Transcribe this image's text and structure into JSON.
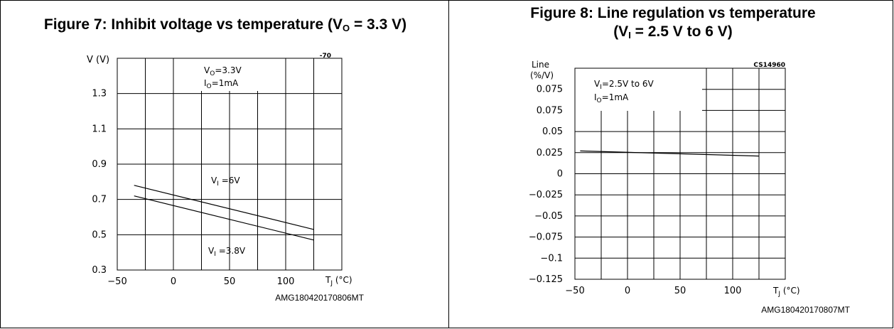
{
  "figures": [
    {
      "title_main": "Figure 7: Inhibit voltage vs temperature (V",
      "title_sub": "O",
      "title_tail": " = 3.3 V)",
      "title_line2_main": "",
      "title_line2_sub": "",
      "title_line2_tail": "",
      "code": "AMG180420170806MT"
    },
    {
      "title_main": "Figure 8: Line regulation vs temperature",
      "title_sub": "",
      "title_tail": "",
      "title_line2_main": "(V",
      "title_line2_sub": "I",
      "title_line2_tail": " = 2.5 V to 6 V)",
      "code": "AMG180420170807MT"
    }
  ],
  "chart_data": [
    {
      "type": "line",
      "title": "Figure 7: Inhibit voltage vs temperature (VO = 3.3 V)",
      "ylabel": "V  (V)",
      "xlabel": "TJ (°C)",
      "corner_tag": "-70",
      "conditions": [
        "VO=3.3V",
        "IO=1mA"
      ],
      "xlim": [
        -50,
        150
      ],
      "ylim": [
        0.3,
        1.5
      ],
      "x_ticks": [
        -50,
        0,
        50,
        100
      ],
      "y_ticks": [
        "0.3",
        "0.5",
        "0.7",
        "0.9",
        "1.1",
        "1.3"
      ],
      "grid": true,
      "series": [
        {
          "name": "VI =6V",
          "x": [
            -35,
            125
          ],
          "y": [
            0.78,
            0.53
          ]
        },
        {
          "name": "VI =3.8V",
          "x": [
            -35,
            125
          ],
          "y": [
            0.72,
            0.47
          ]
        }
      ]
    },
    {
      "type": "line",
      "title": "Figure 8: Line regulation vs temperature (VI = 2.5 V to 6 V)",
      "ylabel": "Line (%/V)",
      "xlabel": "TJ (°C)",
      "corner_tag": "CS14960",
      "conditions": [
        "VI=2.5V  to  6V",
        "IO=1mA"
      ],
      "xlim": [
        -50,
        150
      ],
      "ylim": [
        -0.125,
        0.125
      ],
      "x_ticks": [
        -50,
        0,
        50,
        100
      ],
      "y_ticks": [
        "−0.125",
        "−0.1",
        "−0.075",
        "−0.05",
        "−0.025",
        "0",
        "0.025",
        "0.05",
        "0.075",
        "0.075"
      ],
      "grid": true,
      "series": [
        {
          "name": "",
          "x": [
            -45,
            125
          ],
          "y": [
            0.027,
            0.021
          ]
        }
      ]
    }
  ]
}
